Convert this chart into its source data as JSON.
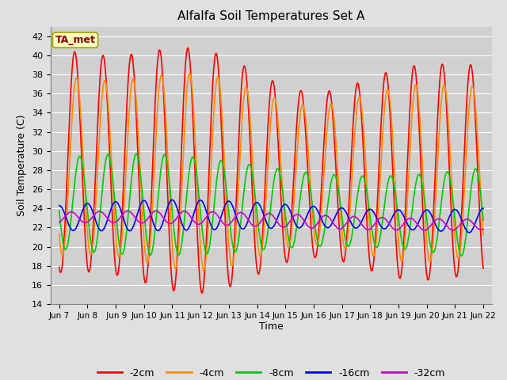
{
  "title": "Alfalfa Soil Temperatures Set A",
  "xlabel": "Time",
  "ylabel": "Soil Temperature (C)",
  "annotation": "TA_met",
  "ylim": [
    14,
    43
  ],
  "yticks": [
    14,
    16,
    18,
    20,
    22,
    24,
    26,
    28,
    30,
    32,
    34,
    36,
    38,
    40,
    42
  ],
  "x_labels": [
    "Jun 7",
    "Jun 8",
    " Jun 9",
    "Jun 10",
    "Jun 11",
    "Jun 12",
    "Jun 13",
    "Jun 14",
    "Jun 15",
    "Jun 16",
    "Jun 17",
    "Jun 18",
    "Jun 19",
    "Jun 20",
    "Jun 21",
    "Jun 22"
  ],
  "x_positions": [
    0,
    1,
    2,
    3,
    4,
    5,
    6,
    7,
    8,
    9,
    10,
    11,
    12,
    13,
    14,
    15
  ],
  "lines": {
    "-2cm": {
      "color": "#FF0000",
      "lw": 1.2
    },
    "-4cm": {
      "color": "#FF8C00",
      "lw": 1.2
    },
    "-8cm": {
      "color": "#00CC00",
      "lw": 1.2
    },
    "-16cm": {
      "color": "#0000FF",
      "lw": 1.2
    },
    "-32cm": {
      "color": "#CC00CC",
      "lw": 1.2
    }
  },
  "legend_labels": [
    "-2cm",
    "-4cm",
    "-8cm",
    "-16cm",
    "-32cm"
  ],
  "legend_colors": [
    "#FF0000",
    "#FF8C00",
    "#00CC00",
    "#0000FF",
    "#CC00CC"
  ],
  "bg_color": "#E0E0E0",
  "plot_bg_color": "#D0D0D0",
  "grid_color": "#FFFFFF",
  "n_points": 720
}
